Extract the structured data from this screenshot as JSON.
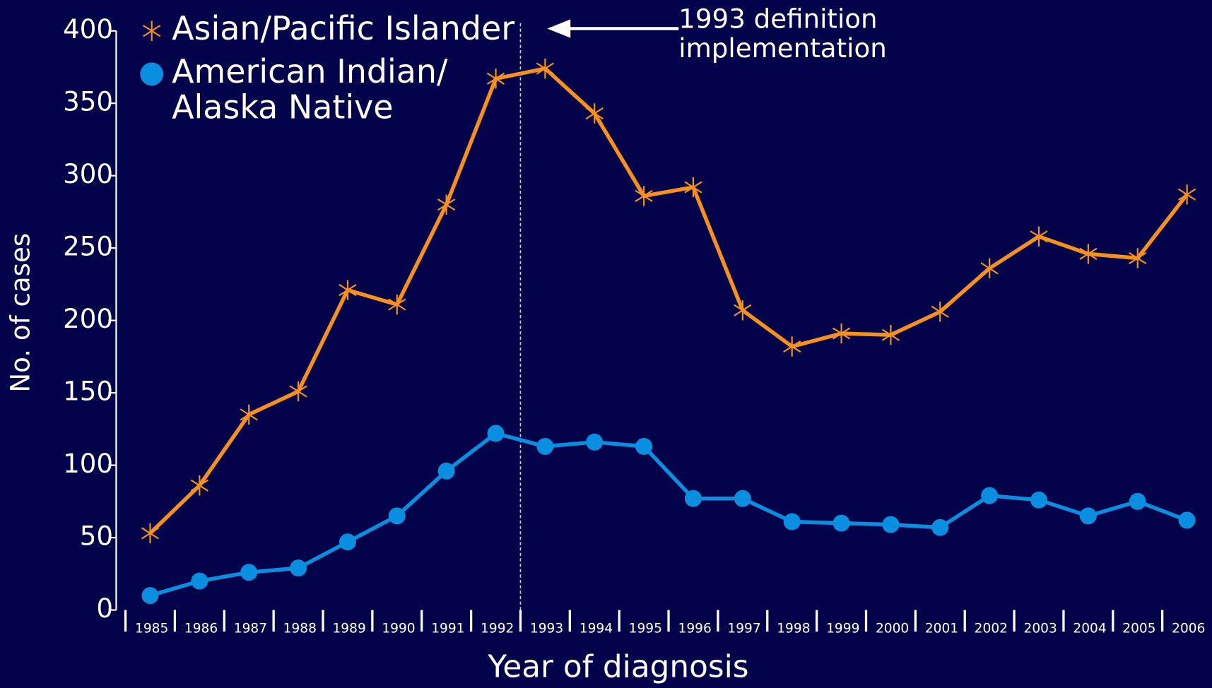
{
  "chart_data": {
    "type": "line",
    "x_label": "Year of diagnosis",
    "y_label": "No. of cases",
    "annotation": "1993 definition implementation",
    "categories": [
      "1985",
      "1986",
      "1987",
      "1988",
      "1989",
      "1990",
      "1991",
      "1992",
      "1993",
      "1994",
      "1995",
      "1996",
      "1997",
      "1998",
      "1999",
      "2000",
      "2001",
      "2002",
      "2003",
      "2004",
      "2005",
      "2006"
    ],
    "series": [
      {
        "name": "Asian/Pacific Islander",
        "color": "#f7901e",
        "marker": "asterisk",
        "values": [
          53,
          86,
          135,
          151,
          221,
          211,
          280,
          367,
          374,
          343,
          286,
          292,
          207,
          182,
          191,
          190,
          206,
          236,
          258,
          246,
          243,
          287
        ]
      },
      {
        "name": "American Indian/ Alaska Native",
        "color": "#0a8fe0",
        "marker": "circle",
        "values": [
          10,
          20,
          26,
          29,
          47,
          65,
          96,
          122,
          113,
          116,
          113,
          77,
          77,
          61,
          60,
          59,
          57,
          79,
          76,
          65,
          75,
          62
        ]
      }
    ],
    "ylim": [
      0,
      400
    ],
    "yticks": [
      0,
      50,
      100,
      150,
      200,
      250,
      300,
      350,
      400
    ],
    "grid": false
  }
}
